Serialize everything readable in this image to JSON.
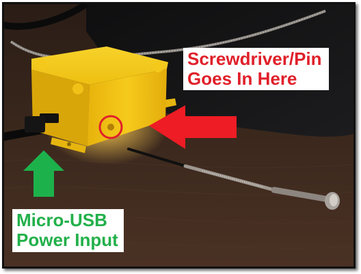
{
  "annotations": {
    "screwdriver": {
      "line1": "Screwdriver/Pin",
      "line2": "Goes In Here",
      "color": "#e0202a"
    },
    "usb": {
      "line1": "Micro-USB",
      "line2": "Power Input",
      "color": "#22b04a"
    }
  },
  "colors": {
    "red_arrow": "#ee1c24",
    "green_arrow": "#1db14b",
    "device": "#f2c417",
    "circle_marker": "#e0202a"
  }
}
